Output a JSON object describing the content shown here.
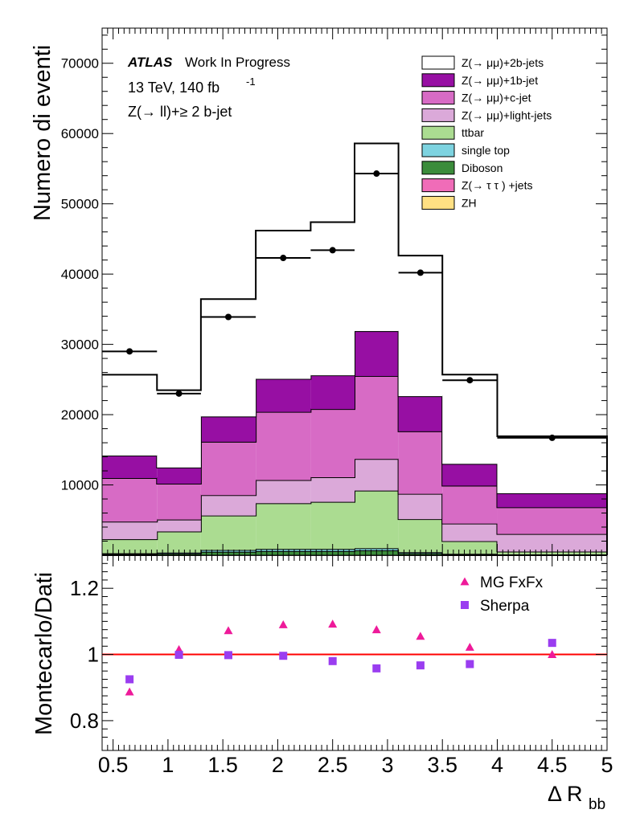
{
  "chart_data": {
    "type": "bar",
    "stacked": true,
    "x_edges": [
      0.4,
      0.9,
      1.3,
      1.8,
      2.3,
      2.7,
      3.1,
      3.5,
      4.0,
      5.0
    ],
    "xlim": [
      0.4,
      5.0
    ],
    "x_ticks": [
      "0.5",
      "1",
      "1.5",
      "2",
      "2.5",
      "3",
      "3.5",
      "4",
      "4.5",
      "5"
    ],
    "xlabel": "Δ R",
    "xlabel_sub": "bb",
    "main": {
      "ylabel": "Numero di eventi",
      "ylim": [
        0,
        75000
      ],
      "y_ticks": [
        "10000",
        "20000",
        "30000",
        "40000",
        "50000",
        "60000",
        "70000"
      ],
      "stack": [
        {
          "name": "ZH",
          "color": "#ffe083",
          "values": [
            5,
            5,
            10,
            10,
            10,
            10,
            5,
            5,
            5
          ]
        },
        {
          "name": "Z(→ τ τ ) +jets",
          "color": "#f06cb8",
          "values": [
            20,
            20,
            30,
            30,
            30,
            30,
            20,
            10,
            10
          ]
        },
        {
          "name": "Diboson",
          "color": "#3b8c3b",
          "values": [
            150,
            200,
            450,
            550,
            550,
            650,
            250,
            100,
            50
          ]
        },
        {
          "name": "single top",
          "color": "#7dd3e0",
          "values": [
            100,
            150,
            250,
            300,
            300,
            300,
            150,
            80,
            50
          ]
        },
        {
          "name": "ttbar",
          "color": "#abdc91",
          "values": [
            2000,
            3000,
            4900,
            6500,
            6700,
            8200,
            4700,
            1800,
            400
          ]
        },
        {
          "name": "Z(→ μμ)+light-jets",
          "color": "#dba9d9",
          "values": [
            2500,
            1700,
            2900,
            3300,
            3500,
            4500,
            3600,
            2500,
            2500
          ]
        },
        {
          "name": "Z(→ μμ)+c-jet",
          "color": "#d76bc5",
          "values": [
            6200,
            5100,
            7600,
            9700,
            9700,
            11800,
            8900,
            5400,
            3800
          ]
        },
        {
          "name": "Z(→ μμ)+1b-jet",
          "color": "#970fa3",
          "values": [
            3200,
            2300,
            3600,
            4700,
            4800,
            6400,
            5000,
            3100,
            2000
          ]
        },
        {
          "name": "Z(→ μμ)+2b-jets",
          "color": "#ffffff",
          "values": [
            11500,
            11000,
            16700,
            21100,
            21800,
            26700,
            20000,
            12700,
            8100
          ]
        }
      ],
      "data_points": [
        {
          "x": 0.65,
          "y": 29000,
          "xlo": 0.4,
          "xhi": 0.9
        },
        {
          "x": 1.1,
          "y": 23000,
          "xlo": 0.9,
          "xhi": 1.3
        },
        {
          "x": 1.55,
          "y": 33900,
          "xlo": 1.3,
          "xhi": 1.8
        },
        {
          "x": 2.05,
          "y": 42300,
          "xlo": 1.8,
          "xhi": 2.3
        },
        {
          "x": 2.5,
          "y": 43400,
          "xlo": 2.3,
          "xhi": 2.7
        },
        {
          "x": 2.9,
          "y": 54300,
          "xlo": 2.7,
          "xhi": 3.1
        },
        {
          "x": 3.3,
          "y": 40200,
          "xlo": 3.1,
          "xhi": 3.5
        },
        {
          "x": 3.75,
          "y": 24900,
          "xlo": 3.5,
          "xhi": 4.0
        },
        {
          "x": 4.5,
          "y": 16700,
          "xlo": 4.0,
          "xhi": 5.0
        }
      ]
    },
    "annotations": {
      "atlas": "ATLAS",
      "status": "Work In Progress",
      "energy": "13 TeV, 140 fb",
      "energy_sup": "-1",
      "selection": "Z(→ ll)+≥ 2 b-jet"
    },
    "ratio": {
      "ylabel": "Montecarlo/Dati",
      "ylim": [
        0.71,
        1.3
      ],
      "y_ticks": [
        "0.8",
        "1",
        "1.2"
      ],
      "reference_line": 1.0,
      "reference_color": "#ff0000",
      "series": [
        {
          "name": "MG FxFx",
          "marker": "triangle",
          "color": "#ee1a9a",
          "x": [
            0.65,
            1.1,
            1.55,
            2.05,
            2.5,
            2.9,
            3.3,
            3.75,
            4.5
          ],
          "values": [
            0.887,
            1.015,
            1.072,
            1.09,
            1.092,
            1.075,
            1.055,
            1.022,
            1.0
          ]
        },
        {
          "name": "Sherpa",
          "marker": "square",
          "color": "#9a3df0",
          "x": [
            0.65,
            1.1,
            1.55,
            2.05,
            2.5,
            2.9,
            3.3,
            3.75,
            4.5
          ],
          "values": [
            0.925,
            0.999,
            0.998,
            0.996,
            0.98,
            0.958,
            0.967,
            0.971,
            1.035
          ]
        }
      ]
    }
  }
}
